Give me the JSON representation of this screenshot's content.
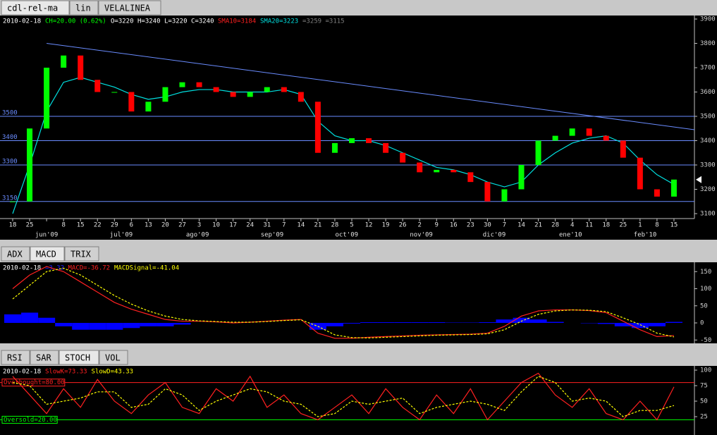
{
  "tabs_main": [
    "cdl-rel-ma",
    "lin",
    "VELALINEA"
  ],
  "main_chart": {
    "type": "candlestick",
    "header": [
      {
        "text": "2010-02-18",
        "color": "#ffffff"
      },
      {
        "text": "CH=20.00 (0.62%)",
        "color": "#00ff00"
      },
      {
        "text": "O=3220",
        "color": "#ffffff"
      },
      {
        "text": "H=3240",
        "color": "#ffffff"
      },
      {
        "text": "L=3220",
        "color": "#ffffff"
      },
      {
        "text": "C=3240",
        "color": "#ffffff"
      },
      {
        "text": "SMA10=3184",
        "color": "#ff2020"
      },
      {
        "text": "SMA20=3223",
        "color": "#00e0e0"
      },
      {
        "text": "=3259",
        "color": "#808080"
      },
      {
        "text": "=3115",
        "color": "#808080"
      }
    ],
    "categories": [
      "18",
      "25",
      null,
      "8",
      "15",
      "22",
      "29",
      "6",
      "13",
      "20",
      "27",
      "3",
      "10",
      "17",
      "24",
      "31",
      "7",
      "14",
      "21",
      "28",
      "5",
      "12",
      "19",
      "26",
      "2",
      "9",
      "16",
      "23",
      "30",
      "7",
      "14",
      "21",
      "28",
      "4",
      "11",
      "18",
      "25",
      "1",
      "8",
      "15"
    ],
    "months": [
      "jun'09",
      "jul'09",
      "ago'09",
      "sep'09",
      "oct'09",
      "nov'09",
      "dic'09",
      "ene'10",
      "feb'10"
    ],
    "series": [
      {
        "name": "close",
        "values": [
          3150,
          3450,
          3700,
          3750,
          3650,
          3600,
          3600,
          3520,
          3560,
          3620,
          3640,
          3620,
          3600,
          3580,
          3600,
          3620,
          3600,
          3560,
          3350,
          3390,
          3410,
          3390,
          3350,
          3310,
          3270,
          3280,
          3270,
          3230,
          3150,
          3200,
          3300,
          3400,
          3420,
          3450,
          3420,
          3400,
          3330,
          3200,
          3170,
          3240
        ],
        "up_color": "#00ff00",
        "down_color": "#ff0000"
      },
      {
        "name": "SMA20",
        "color": "#00e0e0",
        "values": [
          3100,
          3300,
          3520,
          3640,
          3660,
          3640,
          3620,
          3590,
          3570,
          3580,
          3600,
          3610,
          3610,
          3600,
          3600,
          3600,
          3610,
          3590,
          3480,
          3420,
          3400,
          3400,
          3380,
          3350,
          3320,
          3290,
          3280,
          3260,
          3230,
          3210,
          3230,
          3300,
          3350,
          3390,
          3410,
          3420,
          3390,
          3320,
          3260,
          3220
        ]
      }
    ],
    "levels": [
      3500,
      3400,
      3300,
      3150
    ],
    "level_color": "#6a8cff",
    "trendline": [
      3800,
      3445
    ],
    "trendline_color": "#6a8cff",
    "ylim": [
      3100,
      3900
    ],
    "yticks": [
      3900,
      3800,
      3700,
      3600,
      3500,
      3400,
      3300,
      3200,
      3100
    ]
  },
  "tabs_ind1": [
    "ADX",
    "MACD",
    "TRIX"
  ],
  "macd_chart": {
    "type": "macd",
    "header": [
      {
        "text": "2010-02-18",
        "color": "#ffffff"
      },
      {
        "text": "=3.32",
        "color": "#2020ff"
      },
      {
        "text": "MACD=-36.72",
        "color": "#ff2020"
      },
      {
        "text": "MACDSignal=-41.04",
        "color": "#ffff00"
      }
    ],
    "series": [
      {
        "name": "MACD",
        "color": "#ff2020",
        "values": [
          100,
          140,
          165,
          150,
          120,
          90,
          60,
          40,
          25,
          10,
          5,
          5,
          3,
          0,
          2,
          5,
          8,
          10,
          -30,
          -45,
          -45,
          -42,
          -40,
          -38,
          -36,
          -35,
          -34,
          -33,
          -30,
          -10,
          20,
          35,
          38,
          38,
          36,
          30,
          5,
          -20,
          -40,
          -37
        ]
      },
      {
        "name": "MACDSignal",
        "color": "#ffff00",
        "values": [
          70,
          110,
          150,
          160,
          140,
          110,
          80,
          55,
          35,
          20,
          10,
          6,
          4,
          2,
          2,
          4,
          7,
          9,
          -10,
          -35,
          -43,
          -44,
          -42,
          -40,
          -38,
          -36,
          -35,
          -34,
          -32,
          -20,
          5,
          25,
          35,
          38,
          37,
          33,
          15,
          -5,
          -30,
          -41
        ]
      },
      {
        "name": "MACDHist",
        "color": "#0000ff",
        "values": [
          25,
          30,
          15,
          -10,
          -20,
          -20,
          -20,
          -15,
          -10,
          -10,
          -5,
          0,
          0,
          0,
          0,
          0,
          0,
          0,
          -20,
          -10,
          -2,
          2,
          2,
          2,
          2,
          2,
          1,
          1,
          2,
          10,
          15,
          10,
          3,
          0,
          -1,
          -3,
          -10,
          -15,
          -10,
          3
        ]
      }
    ],
    "ylim": [
      -60,
      170
    ],
    "yticks": [
      150,
      100,
      50,
      0,
      -50
    ]
  },
  "tabs_ind2": [
    "RSI",
    "SAR",
    "STOCH",
    "VOL"
  ],
  "stoch_chart": {
    "type": "stoch",
    "header": [
      {
        "text": "2010-02-18",
        "color": "#ffffff"
      },
      {
        "text": "SlowK=73.33",
        "color": "#ff2020"
      },
      {
        "text": "SlowD=43.33",
        "color": "#ffff00"
      }
    ],
    "series": [
      {
        "name": "SlowK",
        "color": "#ff2020",
        "values": [
          90,
          60,
          30,
          70,
          40,
          85,
          50,
          30,
          60,
          80,
          40,
          30,
          70,
          50,
          90,
          40,
          60,
          30,
          20,
          40,
          60,
          30,
          70,
          40,
          20,
          60,
          30,
          70,
          20,
          50,
          80,
          95,
          60,
          40,
          70,
          30,
          20,
          50,
          20,
          73
        ]
      },
      {
        "name": "SlowD",
        "color": "#ffff00",
        "values": [
          80,
          75,
          45,
          50,
          55,
          65,
          65,
          40,
          45,
          70,
          60,
          35,
          50,
          60,
          70,
          65,
          50,
          45,
          25,
          30,
          50,
          45,
          50,
          55,
          30,
          40,
          45,
          50,
          45,
          35,
          65,
          90,
          80,
          50,
          55,
          50,
          25,
          35,
          35,
          43
        ]
      }
    ],
    "overbought": {
      "label": "Overbought=80.00",
      "value": 80
    },
    "oversold": {
      "label": "Oversold=20.00",
      "value": 20
    },
    "ylim": [
      0,
      102
    ],
    "yticks": [
      100,
      75,
      50,
      25
    ]
  }
}
